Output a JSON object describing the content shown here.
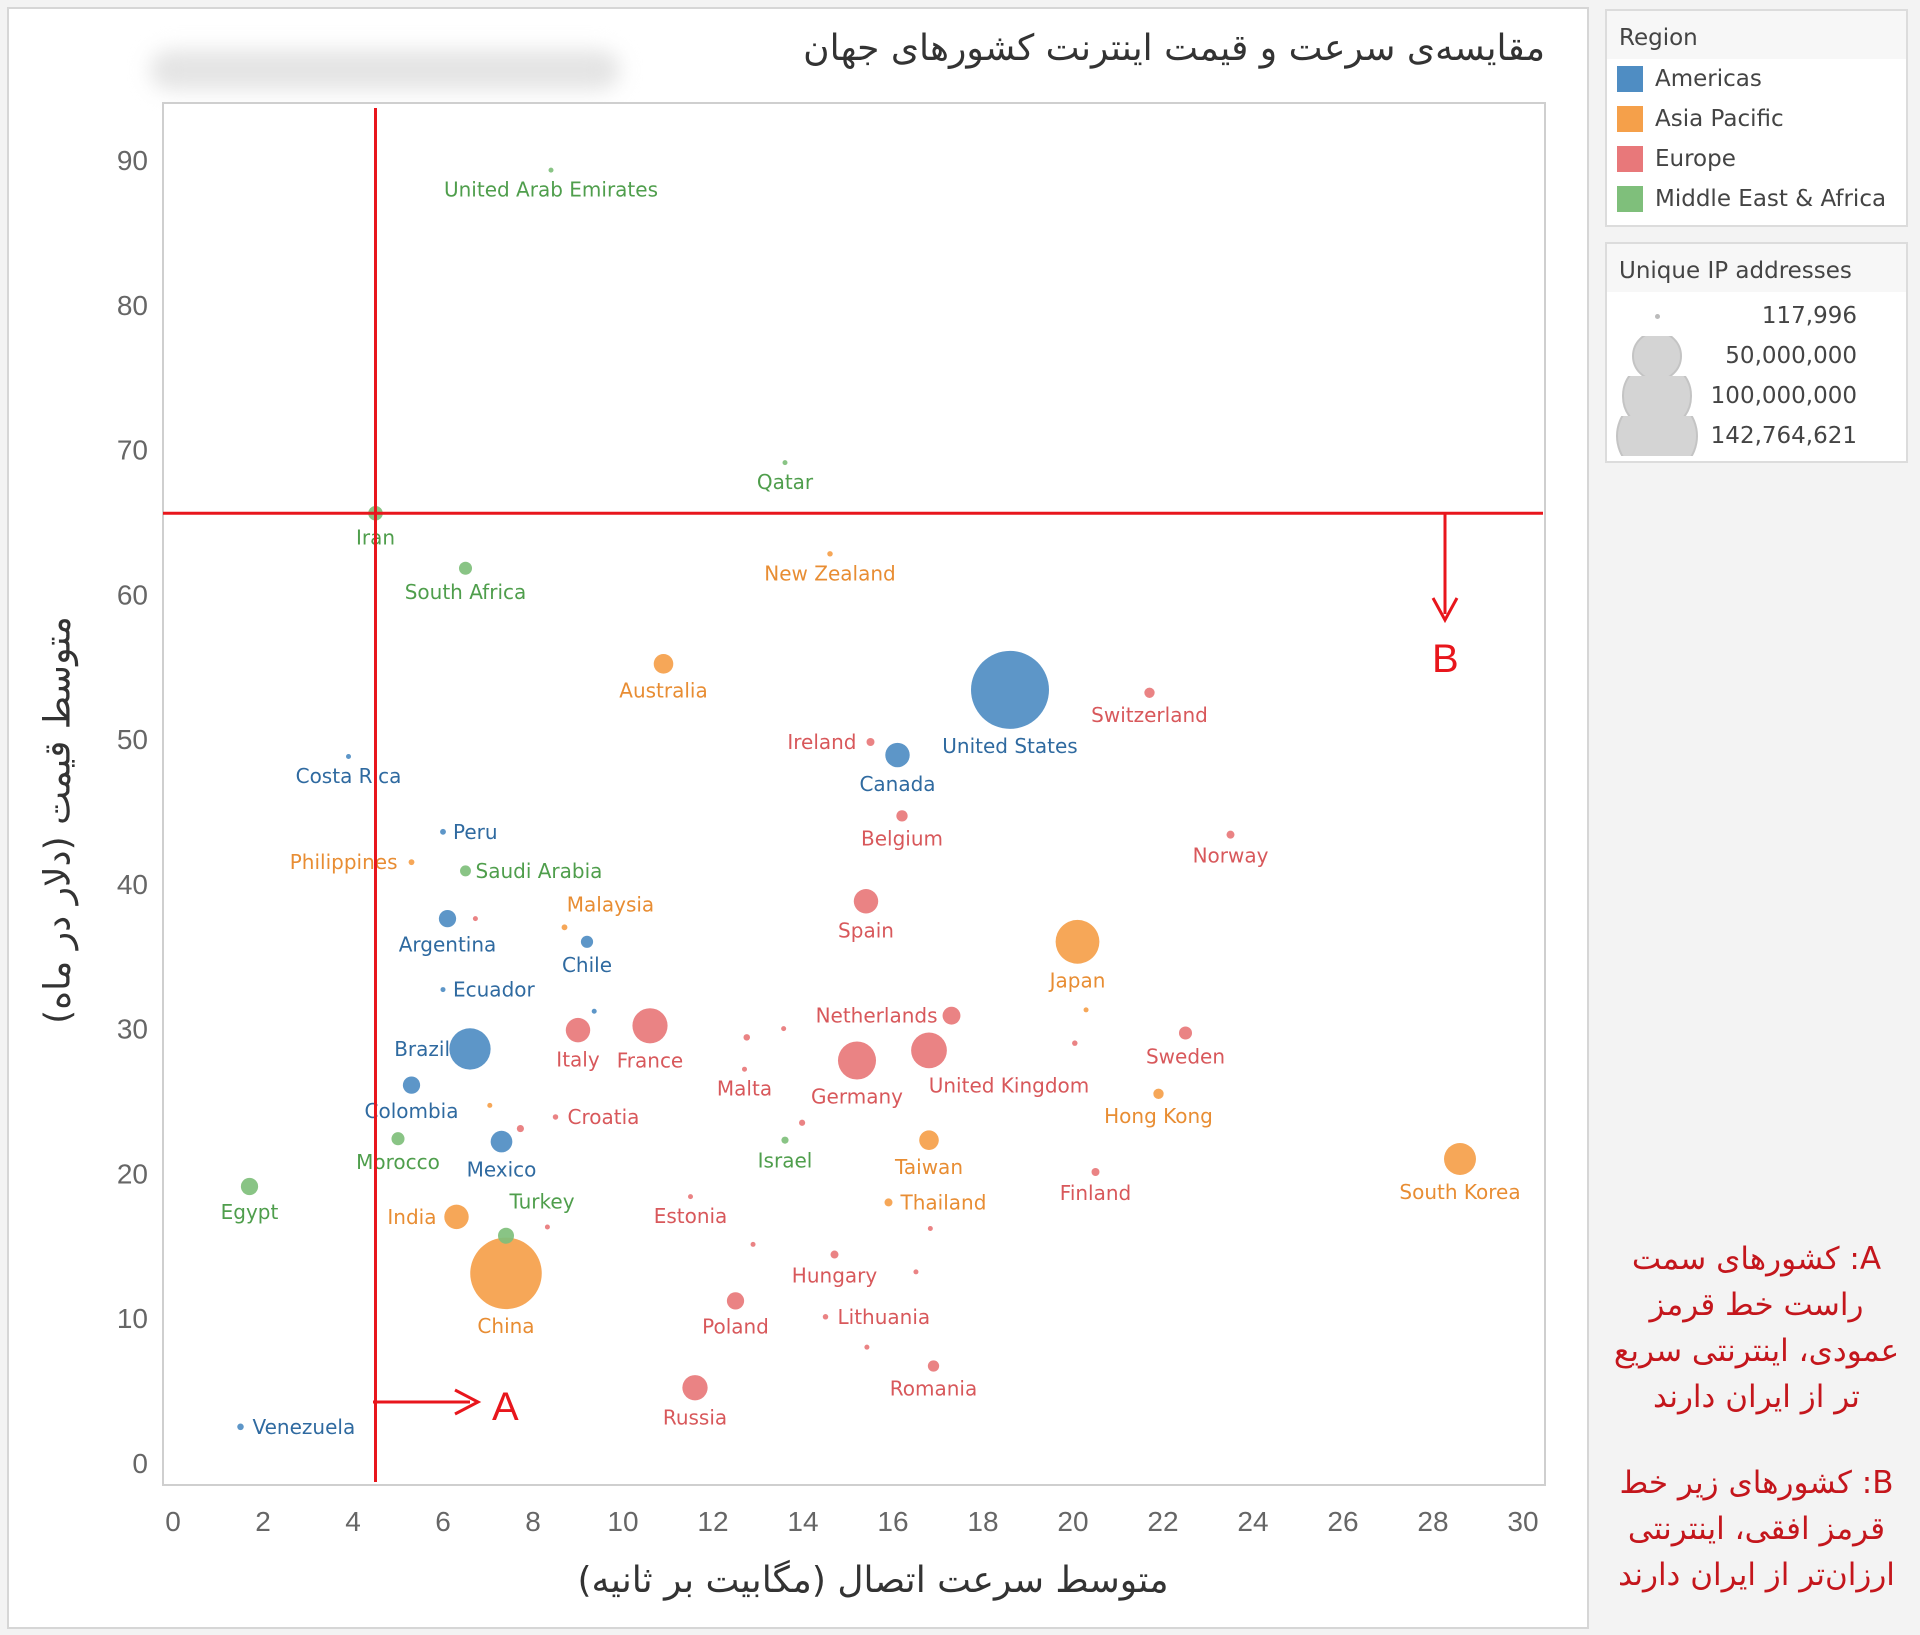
{
  "title": "مقایسه‌ی سرعت و قیمت اینترنت کشورهای جهان",
  "chart_data": {
    "type": "scatter",
    "title": "مقایسه‌ی سرعت و قیمت اینترنت کشورهای جهان",
    "xlabel": "متوسط سرعت اتصال (مگابیت بر ثانیه)",
    "ylabel": "متوسط قیمت (دلار در ماه)",
    "xlim": [
      0,
      30
    ],
    "ylim": [
      0,
      90
    ],
    "xticks": [
      "0",
      "2",
      "4",
      "6",
      "8",
      "10",
      "12",
      "14",
      "16",
      "18",
      "20",
      "22",
      "24",
      "26",
      "28",
      "30"
    ],
    "yticks": [
      "0",
      "10",
      "20",
      "30",
      "40",
      "50",
      "60",
      "70",
      "80",
      "90"
    ],
    "grid": false,
    "size_field": "Unique IP addresses",
    "color_field": "Region",
    "regions": [
      {
        "name": "Americas",
        "color": "#4f8dc3",
        "label_color": "#2f6aa0"
      },
      {
        "name": "Asia Pacific",
        "color": "#f5a04a",
        "label_color": "#e88d33"
      },
      {
        "name": "Europe",
        "color": "#e8787a",
        "label_color": "#d8585b"
      },
      {
        "name": "Middle East & Africa",
        "color": "#7fbf7b",
        "label_color": "#4f9e4c"
      }
    ],
    "points": [
      {
        "country": "United Arab Emirates",
        "region": "Middle East & Africa",
        "x": 8.4,
        "y": 89.3,
        "ips": 400000
      },
      {
        "country": "Qatar",
        "region": "Middle East & Africa",
        "x": 13.6,
        "y": 69.1,
        "ips": 117996
      },
      {
        "country": "Iran",
        "region": "Middle East & Africa",
        "x": 4.5,
        "y": 65.6,
        "ips": 5000000
      },
      {
        "country": "South Africa",
        "region": "Middle East & Africa",
        "x": 6.5,
        "y": 61.8,
        "ips": 4000000
      },
      {
        "country": "New Zealand",
        "region": "Asia Pacific",
        "x": 14.6,
        "y": 62.8,
        "ips": 700000
      },
      {
        "country": "Australia",
        "region": "Asia Pacific",
        "x": 10.9,
        "y": 55.2,
        "ips": 9000000
      },
      {
        "country": "United States",
        "region": "Americas",
        "x": 18.6,
        "y": 53.4,
        "ips": 142764621
      },
      {
        "country": "Switzerland",
        "region": "Europe",
        "x": 21.7,
        "y": 53.2,
        "ips": 2500000
      },
      {
        "country": "Ireland",
        "region": "Europe",
        "x": 15.5,
        "y": 49.8,
        "ips": 1500000
      },
      {
        "country": "Canada",
        "region": "Americas",
        "x": 16.1,
        "y": 48.9,
        "ips": 14000000
      },
      {
        "country": "Costa Rica",
        "region": "Americas",
        "x": 3.9,
        "y": 48.8,
        "ips": 200000
      },
      {
        "country": "Belgium",
        "region": "Europe",
        "x": 16.2,
        "y": 44.7,
        "ips": 3000000
      },
      {
        "country": "Norway",
        "region": "Europe",
        "x": 23.5,
        "y": 43.4,
        "ips": 1500000
      },
      {
        "country": "Peru",
        "region": "Americas",
        "x": 6.0,
        "y": 43.6,
        "ips": 800000
      },
      {
        "country": "Philippines",
        "region": "Asia Pacific",
        "x": 5.3,
        "y": 41.5,
        "ips": 800000
      },
      {
        "country": "Saudi Arabia",
        "region": "Middle East & Africa",
        "x": 6.5,
        "y": 40.9,
        "ips": 2800000
      },
      {
        "country": "Spain",
        "region": "Europe",
        "x": 15.4,
        "y": 38.8,
        "ips": 14000000
      },
      {
        "country": "Argentina",
        "region": "Americas",
        "x": 6.1,
        "y": 37.6,
        "ips": 7000000
      },
      {
        "country": "Malaysia",
        "region": "Asia Pacific",
        "x": 8.7,
        "y": 37.0,
        "ips": 800000
      },
      {
        "country": "Chile",
        "region": "Americas",
        "x": 9.2,
        "y": 36.0,
        "ips": 3500000
      },
      {
        "country": "Japan",
        "region": "Asia Pacific",
        "x": 20.1,
        "y": 36.0,
        "ips": 45000000
      },
      {
        "country": "Ecuador",
        "region": "Americas",
        "x": 6.0,
        "y": 32.7,
        "ips": 300000
      },
      {
        "country": "Netherlands",
        "region": "Europe",
        "x": 17.3,
        "y": 30.9,
        "ips": 7500000
      },
      {
        "country": "Italy",
        "region": "Europe",
        "x": 9.0,
        "y": 29.9,
        "ips": 14000000
      },
      {
        "country": "France",
        "region": "Europe",
        "x": 10.6,
        "y": 30.2,
        "ips": 29000000
      },
      {
        "country": "Sweden",
        "region": "Europe",
        "x": 22.5,
        "y": 29.7,
        "ips": 4000000
      },
      {
        "country": "Brazil",
        "region": "Americas",
        "x": 6.6,
        "y": 28.6,
        "ips": 40000000
      },
      {
        "country": "Malta",
        "region": "Europe",
        "x": 12.7,
        "y": 27.2,
        "ips": 117996
      },
      {
        "country": "Germany",
        "region": "Europe",
        "x": 15.2,
        "y": 27.8,
        "ips": 34000000
      },
      {
        "country": "United Kingdom",
        "region": "Europe",
        "x": 16.8,
        "y": 28.5,
        "ips": 30000000
      },
      {
        "country": "Colombia",
        "region": "Americas",
        "x": 5.3,
        "y": 26.1,
        "ips": 7000000
      },
      {
        "country": "Hong Kong",
        "region": "Asia Pacific",
        "x": 21.9,
        "y": 25.5,
        "ips": 2500000
      },
      {
        "country": "Croatia",
        "region": "Europe",
        "x": 8.5,
        "y": 23.9,
        "ips": 700000
      },
      {
        "country": "Morocco",
        "region": "Middle East & Africa",
        "x": 5.0,
        "y": 22.4,
        "ips": 4000000
      },
      {
        "country": "Mexico",
        "region": "Americas",
        "x": 7.3,
        "y": 22.2,
        "ips": 11000000
      },
      {
        "country": "Israel",
        "region": "Middle East & Africa",
        "x": 13.6,
        "y": 22.3,
        "ips": 1200000
      },
      {
        "country": "Taiwan",
        "region": "Asia Pacific",
        "x": 16.8,
        "y": 22.3,
        "ips": 9000000
      },
      {
        "country": "South Korea",
        "region": "Asia Pacific",
        "x": 28.6,
        "y": 21.0,
        "ips": 24000000
      },
      {
        "country": "Finland",
        "region": "Europe",
        "x": 20.5,
        "y": 20.1,
        "ips": 1500000
      },
      {
        "country": "Egypt",
        "region": "Middle East & Africa",
        "x": 1.7,
        "y": 19.1,
        "ips": 7000000
      },
      {
        "country": "Estonia",
        "region": "Europe",
        "x": 11.5,
        "y": 18.4,
        "ips": 200000
      },
      {
        "country": "Thailand",
        "region": "Asia Pacific",
        "x": 15.9,
        "y": 18.0,
        "ips": 1500000
      },
      {
        "country": "India",
        "region": "Asia Pacific",
        "x": 6.3,
        "y": 17.0,
        "ips": 14000000
      },
      {
        "country": "Turkey",
        "region": "Middle East & Africa",
        "x": 7.4,
        "y": 15.7,
        "ips": 6000000
      },
      {
        "country": "China",
        "region": "Asia Pacific",
        "x": 7.4,
        "y": 13.1,
        "ips": 120000000
      },
      {
        "country": "Hungary",
        "region": "Europe",
        "x": 14.7,
        "y": 14.4,
        "ips": 1500000
      },
      {
        "country": "Poland",
        "region": "Europe",
        "x": 12.5,
        "y": 11.2,
        "ips": 7000000
      },
      {
        "country": "Lithuania",
        "region": "Europe",
        "x": 14.5,
        "y": 10.1,
        "ips": 700000
      },
      {
        "country": "Romania",
        "region": "Europe",
        "x": 16.9,
        "y": 6.7,
        "ips": 3000000
      },
      {
        "country": "Russia",
        "region": "Europe",
        "x": 11.6,
        "y": 5.2,
        "ips": 15000000
      },
      {
        "country": "Venezuela",
        "region": "Americas",
        "x": 1.5,
        "y": 2.5,
        "ips": 1000000
      }
    ],
    "unlabeled_points": [
      {
        "region": "Europe",
        "x": 12.75,
        "y": 29.4,
        "ips": 1000000
      },
      {
        "region": "Europe",
        "x": 13.57,
        "y": 30.0,
        "ips": 300000
      },
      {
        "region": "Americas",
        "x": 9.36,
        "y": 31.2,
        "ips": 300000
      },
      {
        "region": "Europe",
        "x": 6.72,
        "y": 37.6,
        "ips": 200000
      },
      {
        "region": "Asia Pacific",
        "x": 7.04,
        "y": 24.7,
        "ips": 600000
      },
      {
        "region": "Europe",
        "x": 7.72,
        "y": 23.1,
        "ips": 1200000
      },
      {
        "region": "Europe",
        "x": 12.89,
        "y": 15.1,
        "ips": 300000
      },
      {
        "region": "Europe",
        "x": 13.98,
        "y": 23.5,
        "ips": 900000
      },
      {
        "region": "Europe",
        "x": 16.51,
        "y": 13.2,
        "ips": 300000
      },
      {
        "region": "Europe",
        "x": 15.42,
        "y": 8.0,
        "ips": 400000
      },
      {
        "region": "Europe",
        "x": 16.83,
        "y": 16.2,
        "ips": 400000
      },
      {
        "region": "Asia Pacific",
        "x": 20.29,
        "y": 31.3,
        "ips": 400000
      },
      {
        "region": "Europe",
        "x": 20.04,
        "y": 29.0,
        "ips": 700000
      },
      {
        "region": "Europe",
        "x": 8.32,
        "y": 16.3,
        "ips": 117996
      }
    ],
    "reference_lines": {
      "vertical_at_x_of": "Iran",
      "horizontal_at_y_of": "Iran",
      "color": "#e8161c"
    },
    "annotations": {
      "A": "A",
      "B": "B"
    }
  },
  "legend": {
    "region_title": "Region",
    "region_items": [
      {
        "label": "Americas",
        "color": "#4f8dc3"
      },
      {
        "label": "Asia Pacific",
        "color": "#f5a04a"
      },
      {
        "label": "Europe",
        "color": "#e8787a"
      },
      {
        "label": "Middle East & Africa",
        "color": "#7fbf7b"
      }
    ],
    "size_title": "Unique IP addresses",
    "size_items": [
      {
        "label": "117,996",
        "value": 117996
      },
      {
        "label": "50,000,000",
        "value": 50000000
      },
      {
        "label": "100,000,000",
        "value": 100000000
      },
      {
        "label": "142,764,621",
        "value": 142764621
      }
    ]
  },
  "notes": {
    "a": "A: کشورهای سمت راست خط قرمز عمودی، اینترنتی سریع تر از ایران دارند",
    "b": "B: کشورهای زیر خط قرمز افقی، اینترنتی ارزان‌تر از ایران دارند"
  }
}
